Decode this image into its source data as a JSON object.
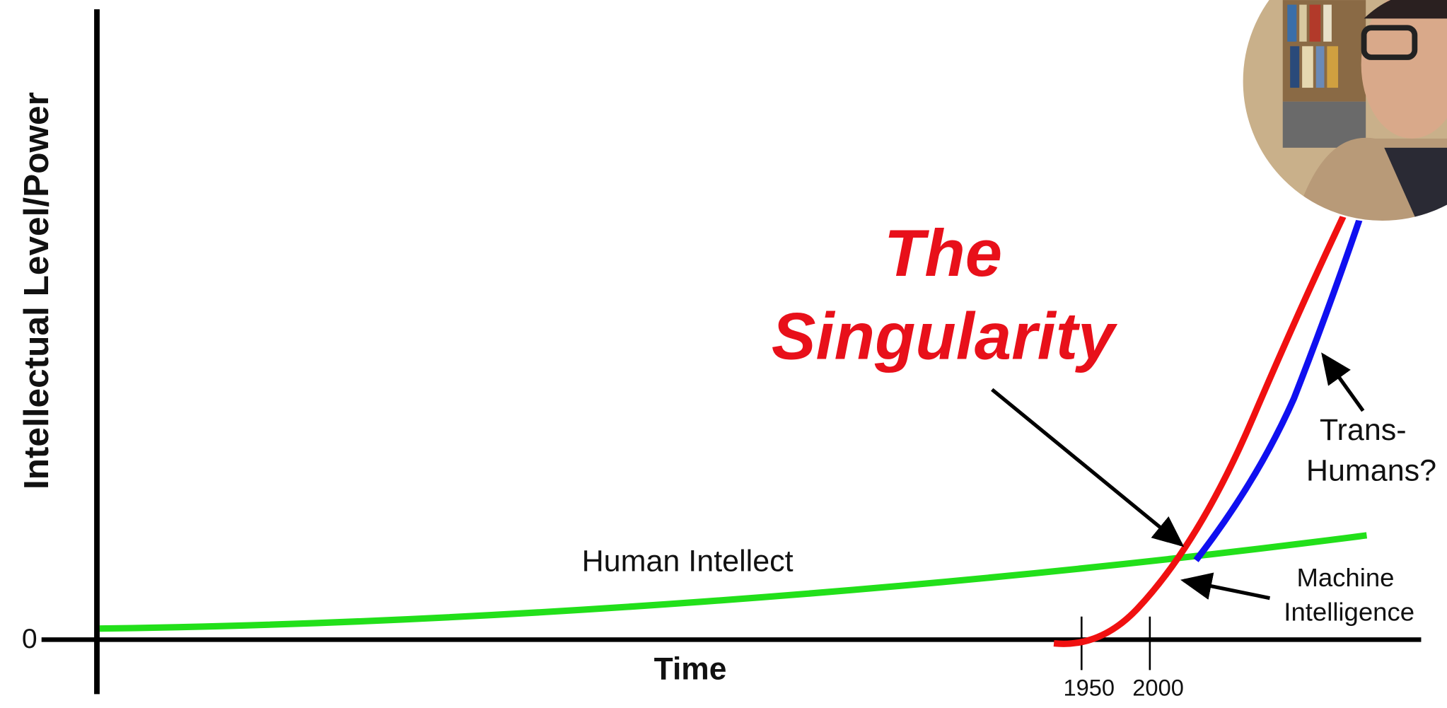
{
  "axes": {
    "y_label": "Intellectual Level/Power",
    "x_label": "Time",
    "origin_label": "0",
    "x_ticks": [
      "1950",
      "2000"
    ]
  },
  "annotations": {
    "title": [
      "The",
      "Singularity"
    ],
    "human": "Human Intellect",
    "machine": [
      "Machine",
      "Intelligence"
    ],
    "trans": [
      "Trans-",
      "Humans?"
    ]
  }
}
